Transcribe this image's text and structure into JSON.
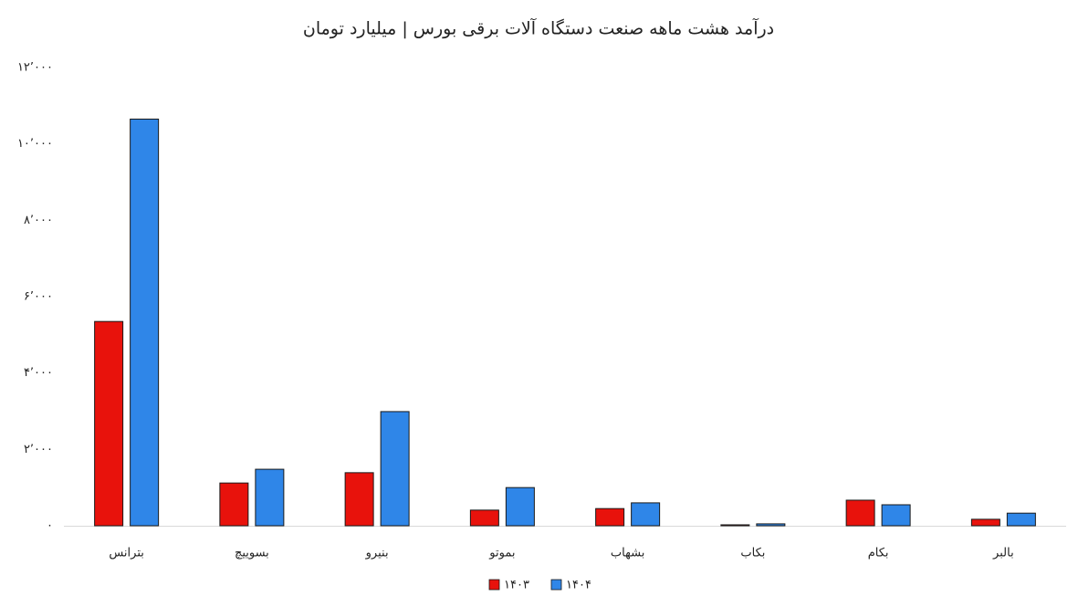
{
  "chart_data": {
    "type": "bar",
    "title": "درآمد هشت ماهه صنعت دستگاه آلات برقی بورس | میلیارد تومان",
    "categories": [
      "بترانس",
      "بسوییچ",
      "بنیرو",
      "بموتو",
      "بشهاب",
      "بکاب",
      "بکام",
      "بالبر"
    ],
    "series": [
      {
        "name": "۱۴۰۳",
        "color": "#e8120c",
        "values": [
          5350,
          1120,
          1390,
          410,
          450,
          25,
          670,
          170
        ]
      },
      {
        "name": "۱۴۰۴",
        "color": "#2f86e8",
        "values": [
          10650,
          1480,
          2990,
          1000,
          600,
          50,
          550,
          330
        ]
      }
    ],
    "ylim": [
      0,
      12000
    ],
    "yticks": [
      {
        "value": 0,
        "label": "۰"
      },
      {
        "value": 2000,
        "label": "۲٬۰۰۰"
      },
      {
        "value": 4000,
        "label": "۴٬۰۰۰"
      },
      {
        "value": 6000,
        "label": "۶٬۰۰۰"
      },
      {
        "value": 8000,
        "label": "۸٬۰۰۰"
      },
      {
        "value": 10000,
        "label": "۱۰٬۰۰۰"
      },
      {
        "value": 12000,
        "label": "۱۲٬۰۰۰"
      }
    ],
    "grid": false,
    "legend": "bottom"
  }
}
